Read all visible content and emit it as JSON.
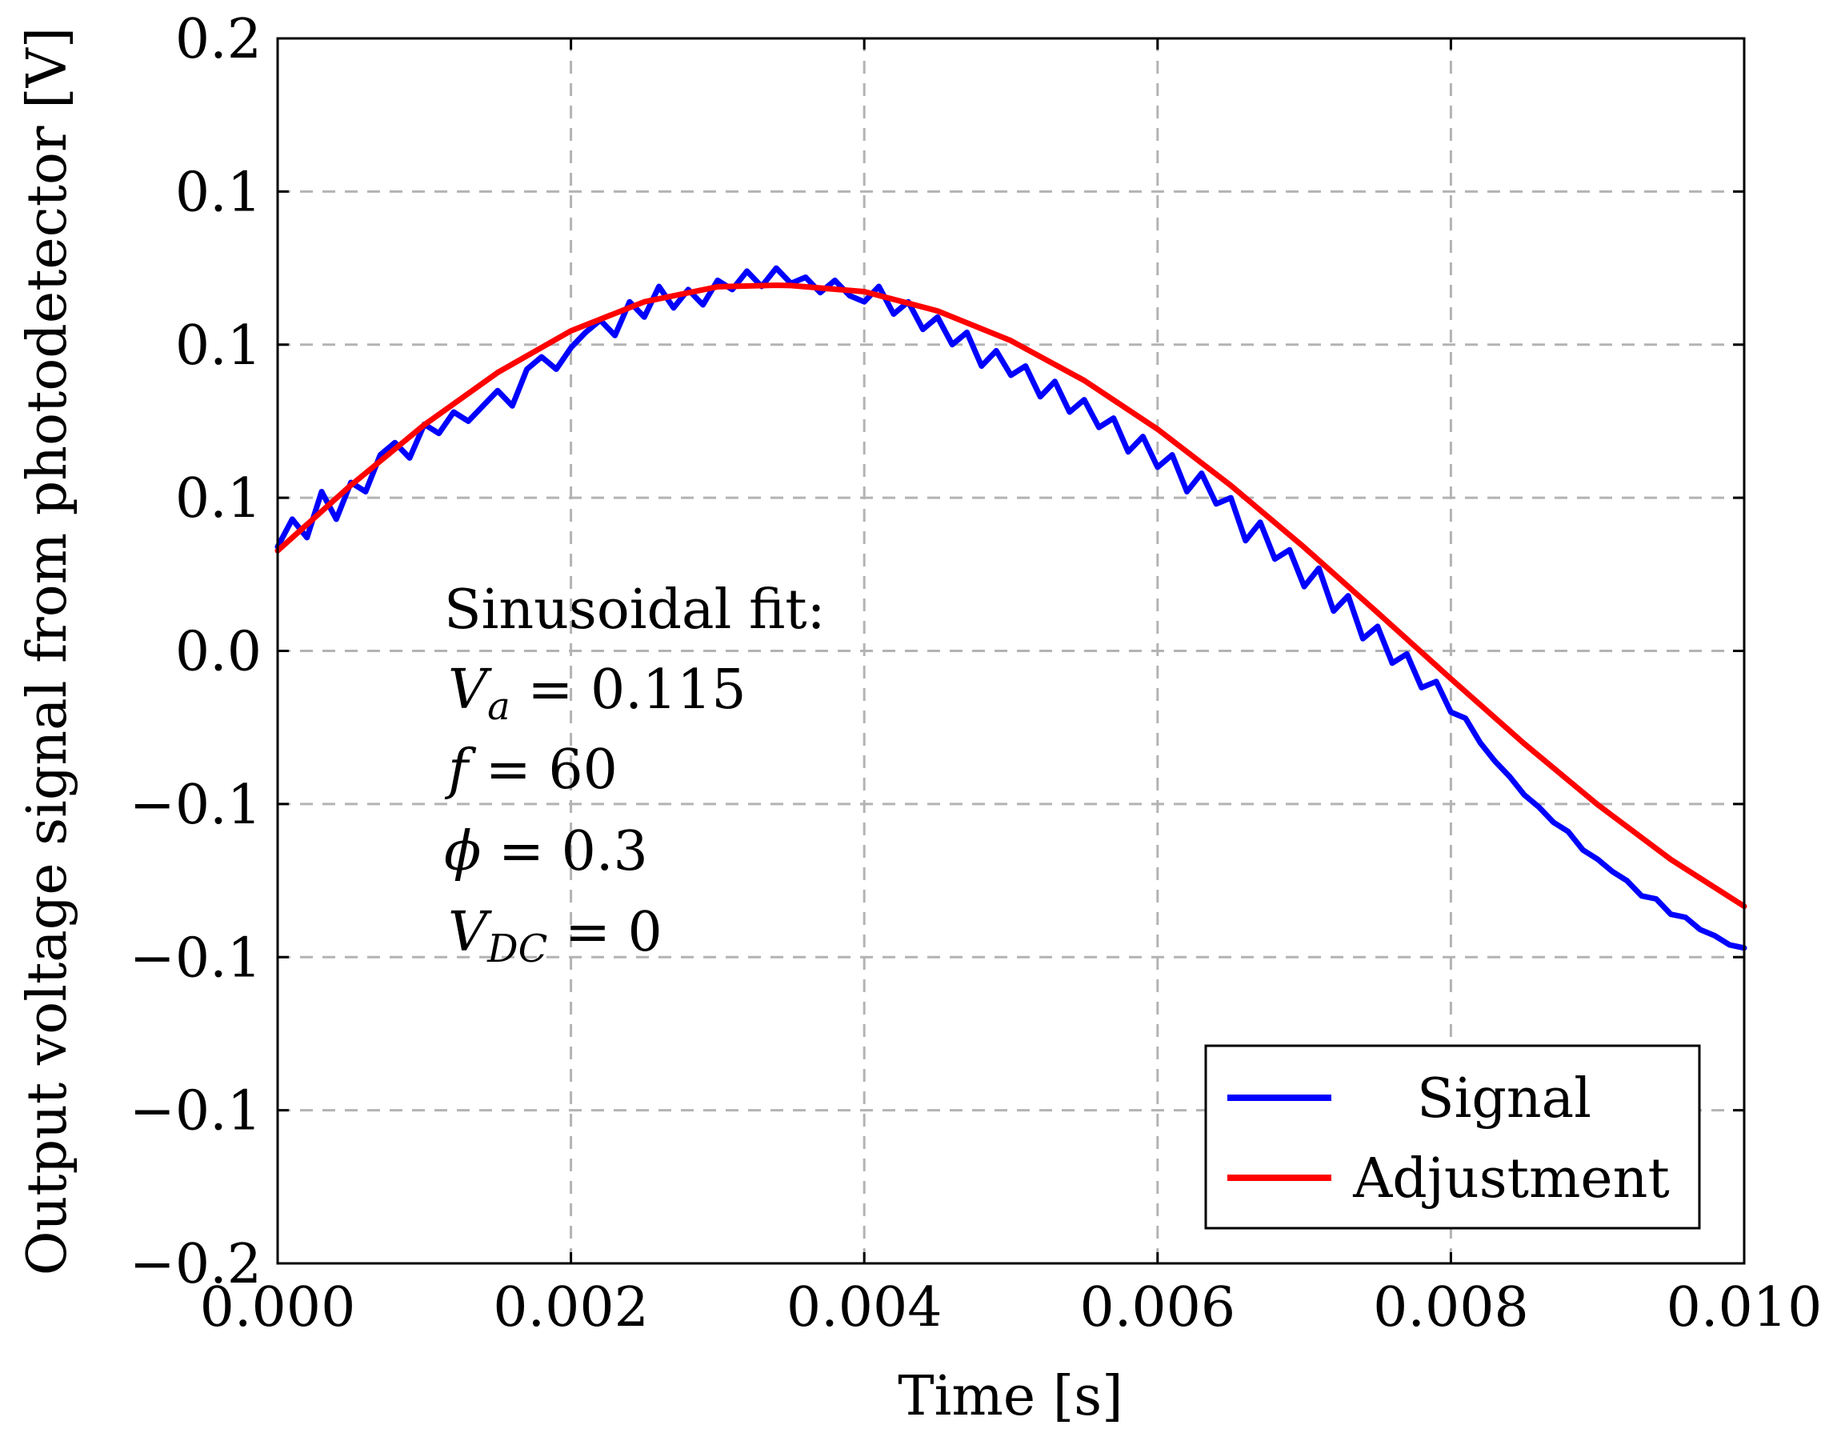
{
  "chart_data": {
    "type": "line",
    "title": "",
    "xlabel": "Time [s]",
    "ylabel": "Output voltage signal from photodetector [V]",
    "xlim": [
      0,
      0.01
    ],
    "ylim": [
      -0.2,
      0.2
    ],
    "grid": true,
    "legend_position": "bottom-right",
    "xticks": [
      {
        "value": 0.0,
        "label": "0.000"
      },
      {
        "value": 0.002,
        "label": "0.002"
      },
      {
        "value": 0.004,
        "label": "0.004"
      },
      {
        "value": 0.006,
        "label": "0.006"
      },
      {
        "value": 0.008,
        "label": "0.008"
      },
      {
        "value": 0.01,
        "label": "0.010"
      }
    ],
    "yticks": [
      {
        "value": 0.2,
        "label": "0.2"
      },
      {
        "value": 0.15,
        "label": "0.1"
      },
      {
        "value": 0.1,
        "label": "0.1"
      },
      {
        "value": 0.05,
        "label": "0.1"
      },
      {
        "value": 0.0,
        "label": "0.0"
      },
      {
        "value": -0.05,
        "label": "−0.1"
      },
      {
        "value": -0.1,
        "label": "−0.1"
      },
      {
        "value": -0.15,
        "label": "−0.1"
      },
      {
        "value": -0.2,
        "label": "−0.2"
      }
    ],
    "fit_annotation": {
      "heading": "Sinusoidal fit:",
      "lines": [
        {
          "symbol": "V",
          "sub": "a",
          "value": "0.115"
        },
        {
          "symbol": "f",
          "sub": "",
          "value": "60"
        },
        {
          "symbol": "ϕ",
          "sub": "",
          "value": "0.3"
        },
        {
          "symbol": "V",
          "sub": "DC",
          "value": "0"
        }
      ]
    },
    "series": [
      {
        "name": "Signal",
        "color": "#0000ff",
        "x": [
          0,
          0.0001,
          0.0002,
          0.0003,
          0.0004,
          0.0005,
          0.0006,
          0.0007,
          0.0008,
          0.0009,
          0.001,
          0.0011,
          0.0012,
          0.0013,
          0.0014,
          0.0015,
          0.0016,
          0.0017,
          0.0018,
          0.0019,
          0.002,
          0.0021,
          0.0022,
          0.0023,
          0.0024,
          0.0025,
          0.0026,
          0.0027,
          0.0028,
          0.0029,
          0.003,
          0.0031,
          0.0032,
          0.0033,
          0.0034,
          0.0035,
          0.0036,
          0.0037,
          0.0038,
          0.0039,
          0.004,
          0.0041,
          0.0042,
          0.0043,
          0.0044,
          0.0045,
          0.0046,
          0.0047,
          0.0048,
          0.0049,
          0.005,
          0.0051,
          0.0052,
          0.0053,
          0.0054,
          0.0055,
          0.0056,
          0.0057,
          0.0058,
          0.0059,
          0.006,
          0.0061,
          0.0062,
          0.0063,
          0.0064,
          0.0065,
          0.0066,
          0.0067,
          0.0068,
          0.0069,
          0.007,
          0.0071,
          0.0072,
          0.0073,
          0.0074,
          0.0075,
          0.0076,
          0.0077,
          0.0078,
          0.0079,
          0.008,
          0.0081,
          0.0082,
          0.0083,
          0.0084,
          0.0085,
          0.0086,
          0.0087,
          0.0088,
          0.0089,
          0.009,
          0.0091,
          0.0092,
          0.0093,
          0.0094,
          0.0095,
          0.0096,
          0.0097,
          0.0098,
          0.0099,
          0.01
        ],
        "y": [
          0.034,
          0.043,
          0.037,
          0.052,
          0.043,
          0.055,
          0.052,
          0.064,
          0.068,
          0.063,
          0.074,
          0.071,
          0.078,
          0.075,
          0.08,
          0.085,
          0.08,
          0.092,
          0.096,
          0.092,
          0.099,
          0.104,
          0.108,
          0.103,
          0.114,
          0.109,
          0.119,
          0.112,
          0.118,
          0.113,
          0.121,
          0.118,
          0.124,
          0.119,
          0.125,
          0.12,
          0.122,
          0.117,
          0.121,
          0.116,
          0.114,
          0.119,
          0.11,
          0.114,
          0.105,
          0.109,
          0.1,
          0.104,
          0.093,
          0.098,
          0.09,
          0.093,
          0.083,
          0.088,
          0.078,
          0.082,
          0.073,
          0.076,
          0.065,
          0.07,
          0.06,
          0.064,
          0.052,
          0.058,
          0.048,
          0.05,
          0.036,
          0.042,
          0.03,
          0.033,
          0.021,
          0.027,
          0.013,
          0.018,
          0.004,
          0.008,
          -0.004,
          -0.001,
          -0.012,
          -0.01,
          -0.02,
          -0.022,
          -0.03,
          -0.036,
          -0.041,
          -0.047,
          -0.051,
          -0.056,
          -0.059,
          -0.065,
          -0.068,
          -0.072,
          -0.075,
          -0.08,
          -0.081,
          -0.086,
          -0.087,
          -0.091,
          -0.093,
          -0.096,
          -0.097
        ]
      },
      {
        "name": "Adjustment",
        "color": "#ff0000",
        "model": "Va*cos(2*pi*f*(t - 0.0034)) + VDC",
        "x": [
          0,
          0.0005,
          0.001,
          0.0015,
          0.002,
          0.0025,
          0.003,
          0.0034,
          0.0035,
          0.004,
          0.0045,
          0.005,
          0.0055,
          0.006,
          0.0065,
          0.007,
          0.0075,
          0.008,
          0.0085,
          0.009,
          0.0095,
          0.01
        ],
        "y": [
          0.0327,
          0.0541,
          0.0738,
          0.0909,
          0.1045,
          0.114,
          0.1189,
          0.1194,
          0.1193,
          0.1173,
          0.111,
          0.1013,
          0.0883,
          0.0724,
          0.054,
          0.0338,
          0.0125,
          -0.0091,
          -0.0303,
          -0.0502,
          -0.0681,
          -0.0834
        ]
      }
    ]
  }
}
